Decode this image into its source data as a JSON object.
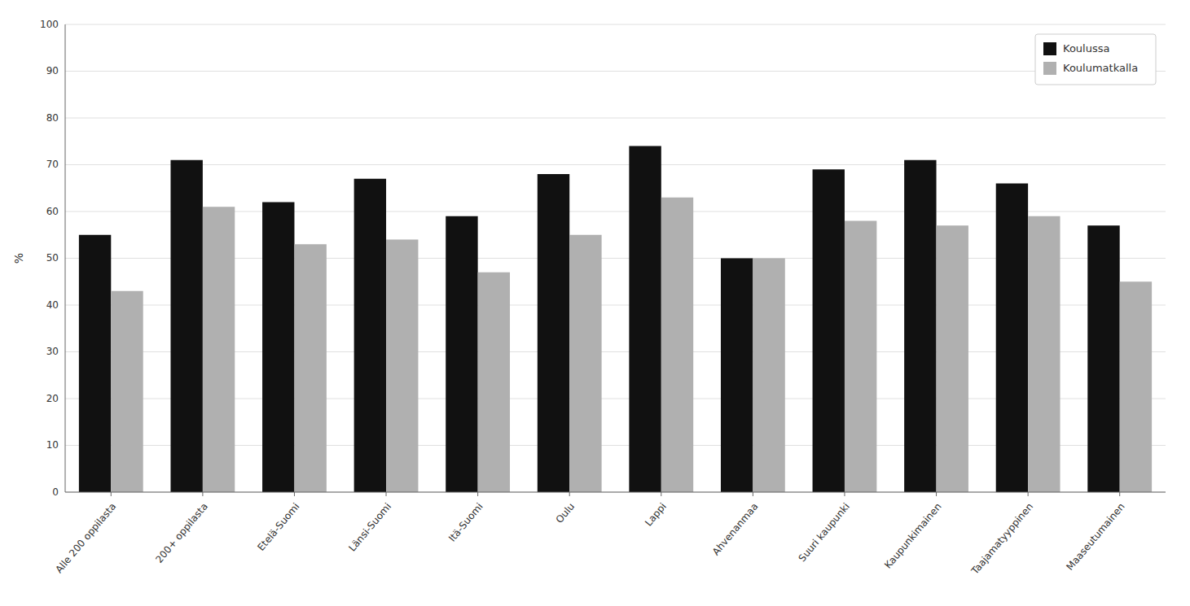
{
  "chart_data": {
    "type": "bar",
    "y_label": "%",
    "categories": [
      "Alle 200 oppilasta",
      "200+ oppilasta",
      "Etelä-Suomi",
      "Länsi-Suomi",
      "Itä-Suomi",
      "Oulu",
      "Lappi",
      "Ahvenanmaa",
      "Suuri kaupunki",
      "Kaupunkimainen",
      "Taajamatyyppinen",
      "Maaseutumainen"
    ],
    "series": [
      {
        "name": "Koulussa",
        "color": "#111111",
        "values": [
          55,
          71,
          62,
          67,
          59,
          68,
          74,
          50,
          69,
          71,
          66,
          57
        ]
      },
      {
        "name": "Koulumatkalla",
        "color": "#b0b0b0",
        "values": [
          43,
          61,
          53,
          54,
          47,
          55,
          63,
          50,
          58,
          57,
          59,
          45
        ]
      }
    ],
    "ylim": [
      0,
      100
    ],
    "yticks": [
      0,
      10,
      20,
      30,
      40,
      50,
      60,
      70,
      80,
      90,
      100
    ],
    "grid": true,
    "legend": "top-right"
  }
}
